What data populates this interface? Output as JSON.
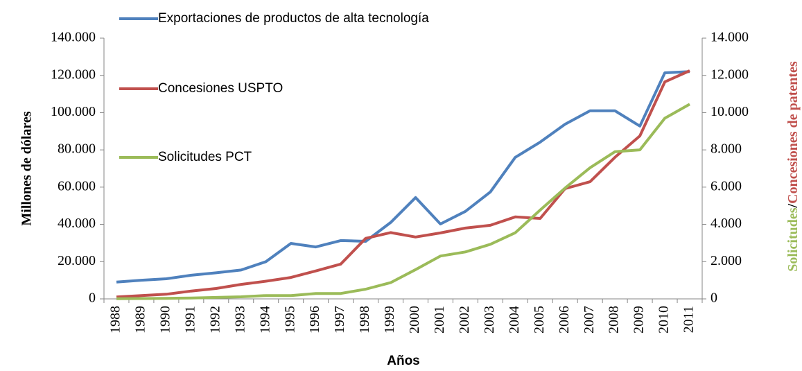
{
  "chart_data": {
    "type": "line",
    "xlabel": "Años",
    "ylabel": "Millones de dólares",
    "y2label_parts": [
      "Solicitudes",
      "/",
      "Concesiones de patentes"
    ],
    "y2label_colors": [
      "#9bbb59",
      "#000000",
      "#c0504d"
    ],
    "ylabel_color": "#558ed5",
    "legend": "upper left",
    "categories": [
      "1988",
      "1989",
      "1990",
      "1991",
      "1992",
      "1993",
      "1994",
      "1995",
      "1996",
      "1997",
      "1998",
      "1999",
      "2000",
      "2001",
      "2002",
      "2003",
      "2004",
      "2005",
      "2006",
      "2007",
      "2008",
      "2009",
      "2010",
      "2011"
    ],
    "ylim": [
      0,
      140000
    ],
    "yticks": [
      0,
      {
        "value": 20000,
        "label": "20.000"
      },
      {
        "value": 40000,
        "label": "40.000"
      },
      {
        "value": 60000,
        "label": "60.000"
      },
      {
        "value": 80000,
        "label": "80.000"
      },
      {
        "value": 100000,
        "label": "100.000"
      },
      {
        "value": 120000,
        "label": "120.000"
      },
      {
        "value": 140000,
        "label": "140.000"
      }
    ],
    "y2lim": [
      0,
      14000
    ],
    "y2ticks": [
      0,
      {
        "value": 2000,
        "label": "2.000"
      },
      {
        "value": 4000,
        "label": "4.000"
      },
      {
        "value": 6000,
        "label": "6.000"
      },
      {
        "value": 8000,
        "label": "8.000"
      },
      {
        "value": 10000,
        "label": "10.000"
      },
      {
        "value": 12000,
        "label": "12.000"
      },
      {
        "value": 14000,
        "label": "14.000"
      }
    ],
    "series": [
      {
        "name": "Exportaciones de productos de alta tecnología",
        "color": "#4f81bd",
        "values": [
          9000,
          10000,
          10800,
          12700,
          14000,
          15500,
          20000,
          29800,
          27900,
          31300,
          30900,
          41000,
          54400,
          40200,
          47000,
          57400,
          76000,
          84200,
          93800,
          101000,
          101000,
          92800,
          121400,
          122000
        ]
      },
      {
        "name": "Concesiones USPTO",
        "color": "#c0504d",
        "axis": "y2",
        "values": [
          100,
          180,
          250,
          420,
          560,
          780,
          950,
          1150,
          1500,
          1870,
          3250,
          3560,
          3320,
          3540,
          3800,
          3950,
          4400,
          4320,
          5920,
          6290,
          7600,
          8750,
          11650,
          12250
        ]
      },
      {
        "name": "Solicitudes PCT",
        "color": "#9bbb59",
        "axis": "y2",
        "values": [
          10,
          20,
          30,
          50,
          80,
          110,
          180,
          180,
          290,
          290,
          520,
          870,
          1570,
          2300,
          2520,
          2930,
          3550,
          4770,
          5950,
          7040,
          7900,
          8000,
          9700,
          10450
        ]
      }
    ]
  }
}
